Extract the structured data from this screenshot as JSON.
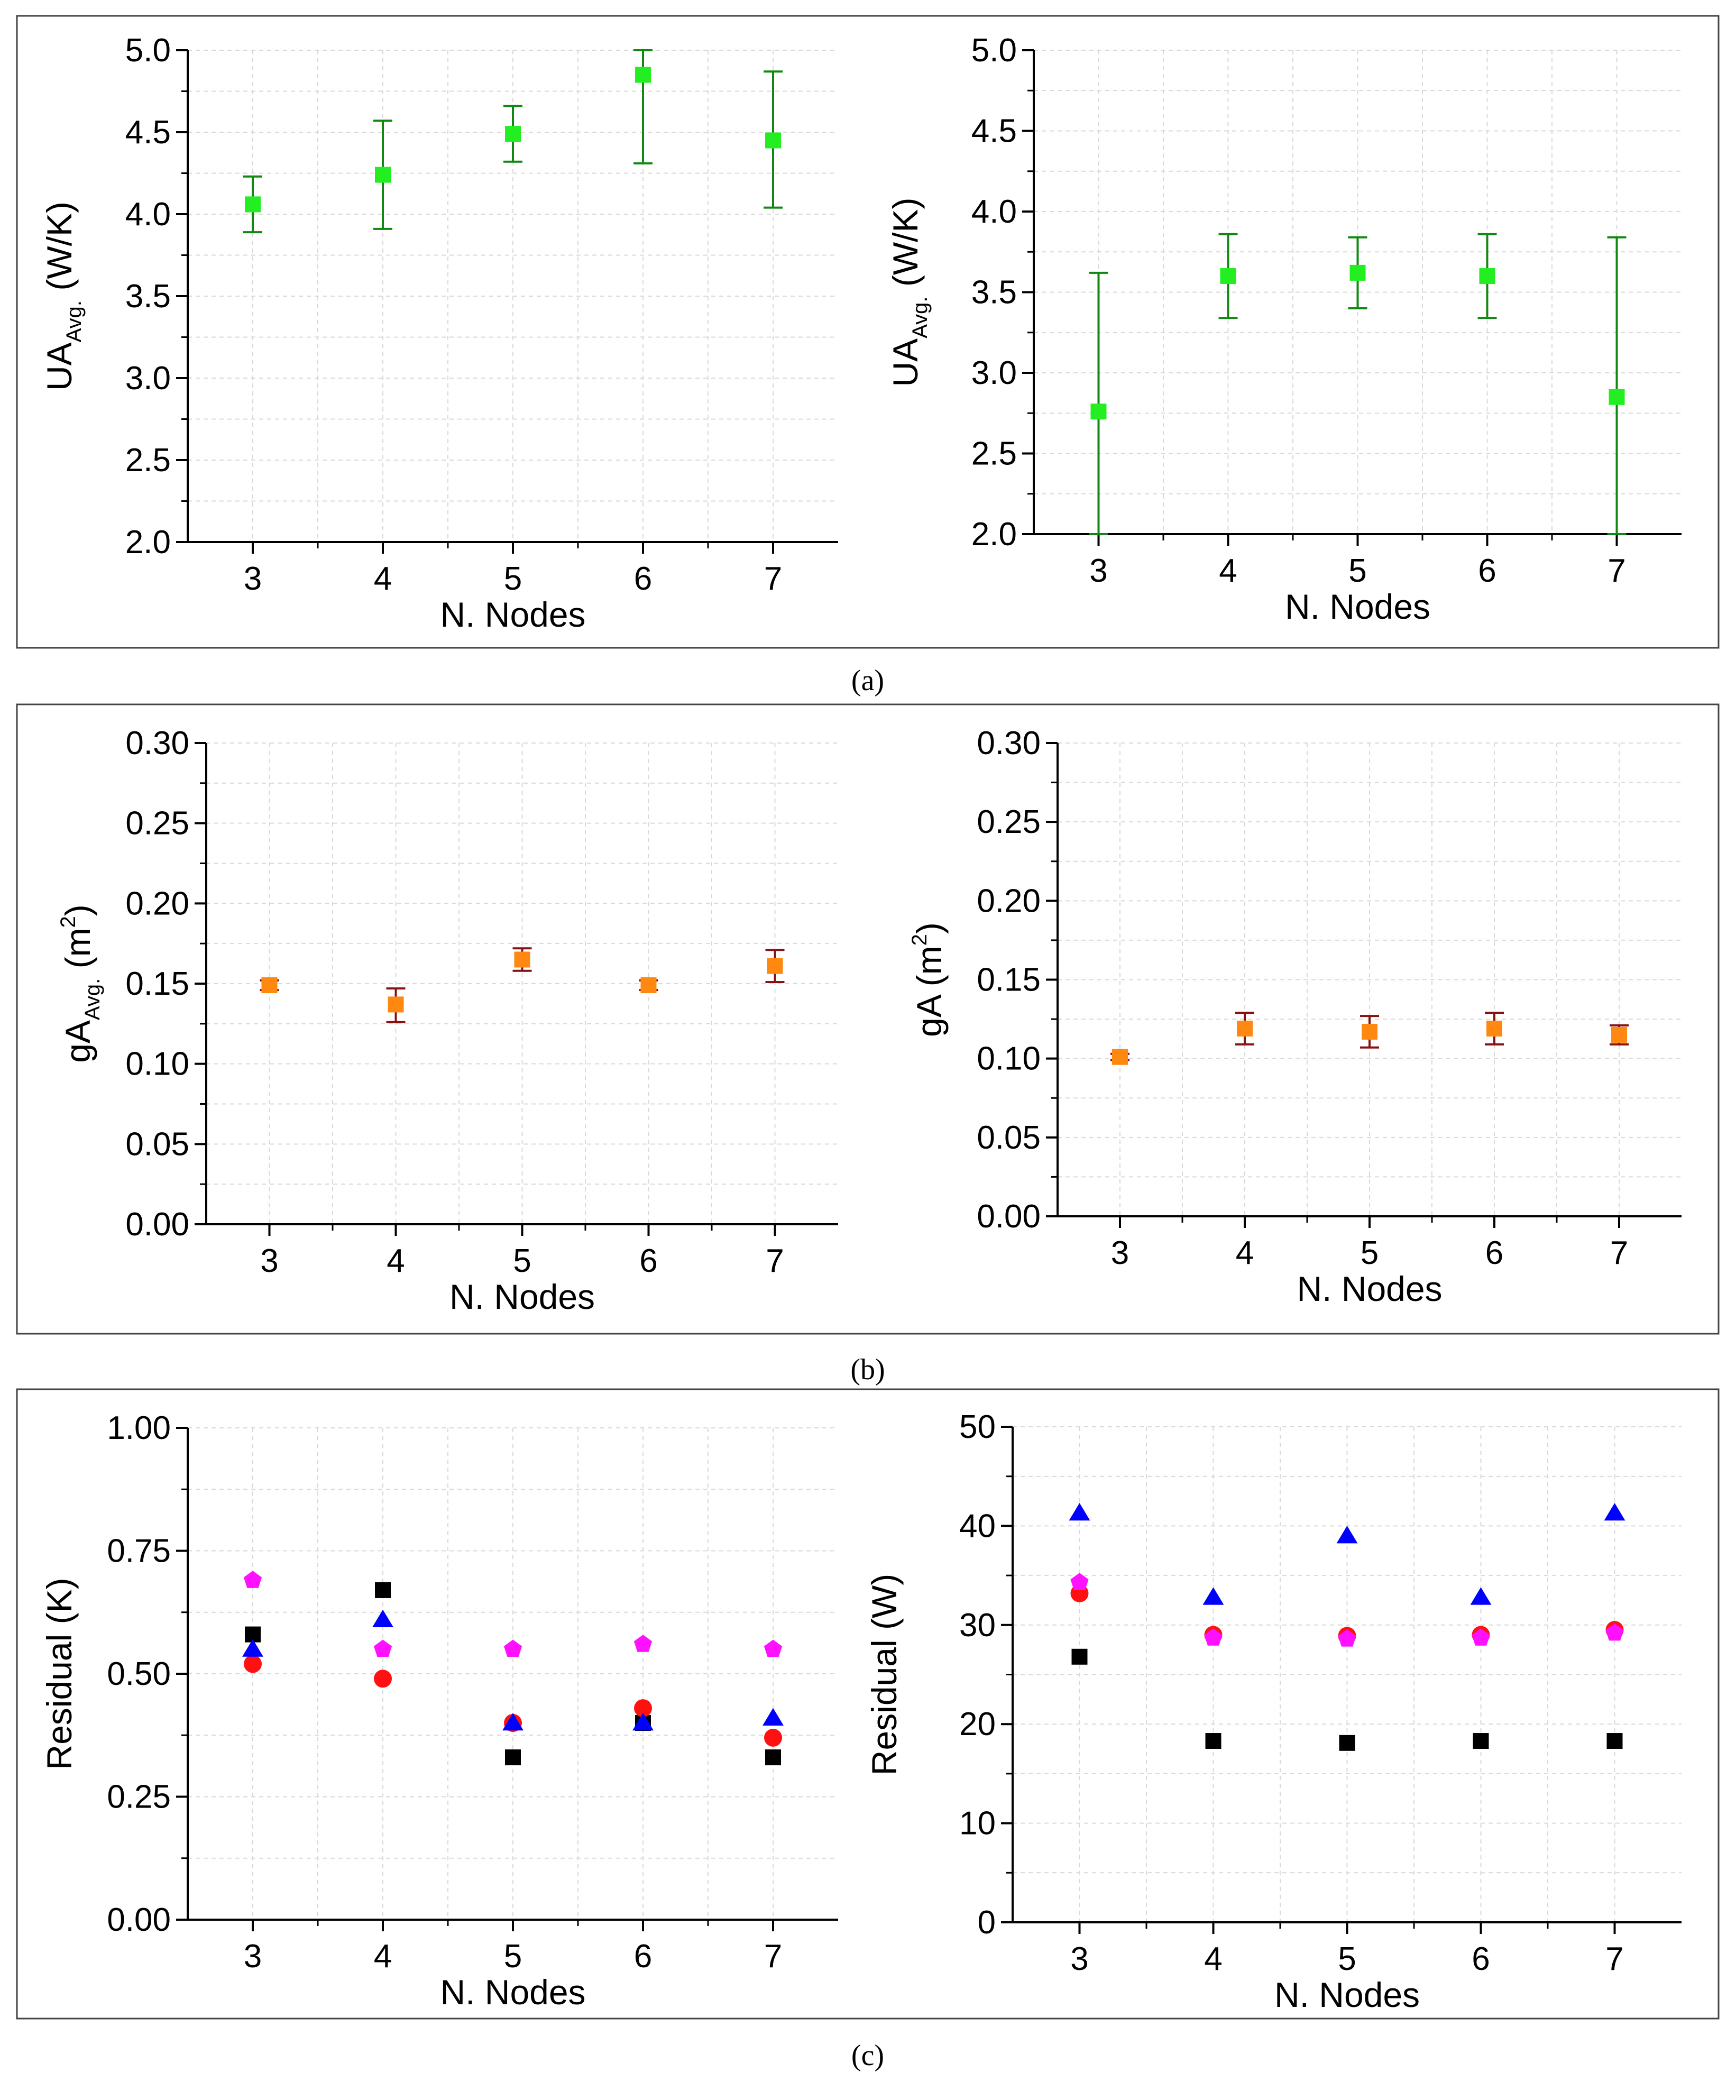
{
  "panels": [
    {
      "letter": "a",
      "caption": "(a)"
    },
    {
      "letter": "b",
      "caption": "(b)"
    },
    {
      "letter": "c",
      "caption": "(c)"
    }
  ],
  "colors": {
    "green_marker": "#22ee22",
    "green_error": "#118811",
    "orange_marker": "#ff8811",
    "orange_error": "#881111",
    "black": "#000000",
    "red": "#ff1111",
    "blue": "#0000ff",
    "magenta": "#ff11ff",
    "grid": "#d9d9d9"
  },
  "chart_data": [
    {
      "id": "a-left",
      "type": "scatter",
      "error_bars": true,
      "xlabel": "N. Nodes",
      "ylabel_main": "UA",
      "ylabel_sub": "Avg.",
      "ylabel_unit": "(W/K)",
      "categories": [
        "3",
        "4",
        "5",
        "6",
        "7"
      ],
      "xlim": [
        2.5,
        7.5
      ],
      "ylim": [
        2.0,
        5.0
      ],
      "yticks": [
        "2.0",
        "2.5",
        "3.0",
        "3.5",
        "4.0",
        "4.5",
        "5.0"
      ],
      "series": [
        {
          "name": "UA",
          "marker": "square",
          "color": "green",
          "values": [
            4.06,
            4.24,
            4.49,
            4.85,
            4.45
          ],
          "err_low": [
            3.89,
            3.91,
            4.32,
            4.31,
            4.04
          ],
          "err_high": [
            4.23,
            4.57,
            4.66,
            5.0,
            4.87
          ]
        }
      ]
    },
    {
      "id": "a-right",
      "type": "scatter",
      "error_bars": true,
      "xlabel": "N. Nodes",
      "ylabel_main": "UA",
      "ylabel_sub": "Avg.",
      "ylabel_unit": "(W/K)",
      "categories": [
        "3",
        "4",
        "5",
        "6",
        "7"
      ],
      "xlim": [
        2.5,
        7.5
      ],
      "ylim": [
        2.0,
        5.0
      ],
      "yticks": [
        "2.0",
        "2.5",
        "3.0",
        "3.5",
        "4.0",
        "4.5",
        "5.0"
      ],
      "series": [
        {
          "name": "UA",
          "marker": "square",
          "color": "green",
          "values": [
            2.76,
            3.6,
            3.62,
            3.6,
            2.85
          ],
          "err_low": [
            2.0,
            3.34,
            3.4,
            3.34,
            2.0
          ],
          "err_high": [
            3.62,
            3.86,
            3.84,
            3.86,
            3.84
          ]
        }
      ]
    },
    {
      "id": "b-left",
      "type": "scatter",
      "error_bars": true,
      "xlabel": "N. Nodes",
      "ylabel_main": "gA",
      "ylabel_sub": "Avg.",
      "ylabel_unit": "(m",
      "ylabel_sup": "2",
      "ylabel_close": ")",
      "categories": [
        "3",
        "4",
        "5",
        "6",
        "7"
      ],
      "xlim": [
        2.5,
        7.5
      ],
      "ylim": [
        0.0,
        0.3
      ],
      "yticks": [
        "0.00",
        "0.05",
        "0.10",
        "0.15",
        "0.20",
        "0.25",
        "0.30"
      ],
      "series": [
        {
          "name": "gA",
          "marker": "square",
          "color": "orange",
          "values": [
            0.149,
            0.137,
            0.165,
            0.149,
            0.161
          ],
          "err_low": [
            0.146,
            0.126,
            0.158,
            0.146,
            0.151
          ],
          "err_high": [
            0.152,
            0.147,
            0.172,
            0.152,
            0.171
          ]
        }
      ]
    },
    {
      "id": "b-right",
      "type": "scatter",
      "error_bars": true,
      "xlabel": "N. Nodes",
      "ylabel_main": "gA (m",
      "ylabel_sub": "",
      "ylabel_unit": "",
      "ylabel_sup": "2",
      "ylabel_close": ")",
      "categories": [
        "3",
        "4",
        "5",
        "6",
        "7"
      ],
      "xlim": [
        2.5,
        7.5
      ],
      "ylim": [
        0.0,
        0.3
      ],
      "yticks": [
        "0.00",
        "0.05",
        "0.10",
        "0.15",
        "0.20",
        "0.25",
        "0.30"
      ],
      "series": [
        {
          "name": "gA",
          "marker": "square",
          "color": "orange",
          "values": [
            0.101,
            0.119,
            0.117,
            0.119,
            0.115
          ],
          "err_low": [
            0.099,
            0.109,
            0.107,
            0.109,
            0.109
          ],
          "err_high": [
            0.103,
            0.129,
            0.127,
            0.129,
            0.121
          ]
        }
      ]
    },
    {
      "id": "c-left",
      "type": "scatter",
      "error_bars": false,
      "xlabel": "N. Nodes",
      "ylabel_main": "Residual (K)",
      "ylabel_sub": "",
      "ylabel_unit": "",
      "categories": [
        "3",
        "4",
        "5",
        "6",
        "7"
      ],
      "xlim": [
        2.5,
        7.5
      ],
      "ylim": [
        0.0,
        1.0
      ],
      "yticks": [
        "0.00",
        "0.25",
        "0.50",
        "0.75",
        "1.00"
      ],
      "series": [
        {
          "name": "black squares",
          "marker": "square",
          "color": "black",
          "values": [
            0.58,
            0.67,
            0.33,
            0.4,
            0.33
          ]
        },
        {
          "name": "red circles",
          "marker": "circle",
          "color": "red",
          "values": [
            0.52,
            0.49,
            0.4,
            0.43,
            0.37
          ]
        },
        {
          "name": "blue triangles",
          "marker": "triangle",
          "color": "blue",
          "values": [
            0.55,
            0.61,
            0.4,
            0.4,
            0.41
          ]
        },
        {
          "name": "magenta pentagons",
          "marker": "pentagon",
          "color": "magenta",
          "values": [
            0.69,
            0.55,
            0.55,
            0.56,
            0.55
          ]
        }
      ]
    },
    {
      "id": "c-right",
      "type": "scatter",
      "error_bars": false,
      "xlabel": "N. Nodes",
      "ylabel_main": "Residual (W)",
      "ylabel_sub": "",
      "ylabel_unit": "",
      "categories": [
        "3",
        "4",
        "5",
        "6",
        "7"
      ],
      "xlim": [
        2.5,
        7.5
      ],
      "ylim": [
        0,
        50
      ],
      "yticks": [
        "0",
        "10",
        "20",
        "30",
        "40",
        "50"
      ],
      "series": [
        {
          "name": "black squares",
          "marker": "square",
          "color": "black",
          "values": [
            26.8,
            18.3,
            18.1,
            18.3,
            18.3
          ]
        },
        {
          "name": "red circles",
          "marker": "circle",
          "color": "red",
          "values": [
            33.2,
            29.0,
            28.9,
            29.0,
            29.5
          ]
        },
        {
          "name": "blue triangles",
          "marker": "triangle",
          "color": "blue",
          "values": [
            41.3,
            32.8,
            39.0,
            32.8,
            41.3
          ]
        },
        {
          "name": "magenta pentagons",
          "marker": "pentagon",
          "color": "magenta",
          "values": [
            34.3,
            28.7,
            28.6,
            28.7,
            29.2
          ]
        }
      ]
    }
  ]
}
